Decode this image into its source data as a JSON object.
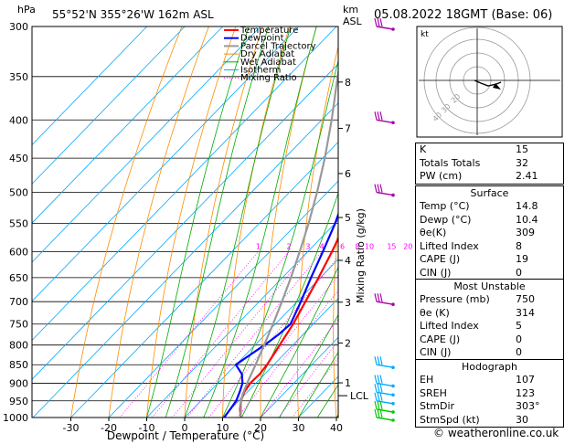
{
  "header": {
    "unit_left": "hPa",
    "location": "55°52'N  355°26'W  162m  ASL",
    "unit_right_1": "km",
    "unit_right_2": "ASL",
    "datetime": "05.08.2022  18GMT  (Base: 06)"
  },
  "chart_data": {
    "type": "line",
    "title": "55°52'N  355°26'W  162m  ASL",
    "xlabel": "Dewpoint / Temperature (°C)",
    "ylabel_left": "hPa",
    "ylabel_right": "Mixing Ratio (g/kg)",
    "x_ticks": [
      "-30",
      "-20",
      "-10",
      "0",
      "10",
      "20",
      "30",
      "40"
    ],
    "pressure_ticks": [
      "300",
      "350",
      "400",
      "450",
      "500",
      "550",
      "600",
      "650",
      "700",
      "750",
      "800",
      "850",
      "900",
      "950",
      "1000"
    ],
    "km_ticks": [
      "1",
      "2",
      "3",
      "4",
      "5",
      "6",
      "7",
      "8"
    ],
    "lcl_label": "LCL",
    "mixing_ratio_labels": [
      "1",
      "2",
      "3",
      "4",
      "6",
      "8",
      "10",
      "15",
      "20",
      "25"
    ],
    "legend": [
      "Temperature",
      "Dewpoint",
      "Parcel Trajectory",
      "Dry Adiabat",
      "Wet Adiabat",
      "Isotherm",
      "Mixing Ratio"
    ],
    "colors": {
      "temperature": "#ff0000",
      "dewpoint": "#0000ff",
      "parcel": "#999999",
      "dry_adiabat": "#ff8c00",
      "wet_adiabat": "#00aa00",
      "isotherm": "#00aaff",
      "mixing_ratio": "#ff00ff"
    },
    "series": [
      {
        "name": "Temperature",
        "points": [
          [
            1000,
            14.8
          ],
          [
            975,
            12.5
          ],
          [
            950,
            10.6
          ],
          [
            925,
            9.2
          ],
          [
            900,
            8.5
          ],
          [
            875,
            8.7
          ],
          [
            850,
            8.2
          ],
          [
            800,
            6.5
          ],
          [
            750,
            4.7
          ],
          [
            700,
            2.2
          ],
          [
            650,
            -0.5
          ],
          [
            600,
            -3.6
          ],
          [
            550,
            -7.3
          ],
          [
            500,
            -11.6
          ],
          [
            450,
            -16.8
          ],
          [
            400,
            -23.5
          ],
          [
            350,
            -32.0
          ],
          [
            300,
            -41.5
          ]
        ]
      },
      {
        "name": "Dewpoint",
        "points": [
          [
            1000,
            10.4
          ],
          [
            975,
            9.9
          ],
          [
            950,
            9.3
          ],
          [
            925,
            8.0
          ],
          [
            900,
            6.5
          ],
          [
            875,
            4.0
          ],
          [
            850,
            0.0
          ],
          [
            825,
            1.2
          ],
          [
            800,
            2.5
          ],
          [
            775,
            3.5
          ],
          [
            750,
            4.0
          ],
          [
            700,
            1.0
          ],
          [
            650,
            -2.5
          ],
          [
            600,
            -6.0
          ],
          [
            550,
            -10.0
          ],
          [
            500,
            -15.0
          ],
          [
            450,
            -20.5
          ],
          [
            420,
            -25.0
          ],
          [
            400,
            -33.0
          ],
          [
            350,
            -36.5
          ],
          [
            300,
            -44.0
          ]
        ]
      },
      {
        "name": "Parcel Trajectory",
        "points": [
          [
            1000,
            14.8
          ],
          [
            950,
            10.6
          ],
          [
            930,
            9.3
          ],
          [
            900,
            7.7
          ],
          [
            850,
            5.2
          ],
          [
            800,
            2.4
          ],
          [
            750,
            -0.6
          ],
          [
            700,
            -4.0
          ],
          [
            650,
            -7.8
          ],
          [
            600,
            -12.1
          ],
          [
            550,
            -17.0
          ],
          [
            500,
            -22.7
          ],
          [
            450,
            -29.4
          ],
          [
            400,
            -37.4
          ],
          [
            350,
            -46.9
          ],
          [
            300,
            -57.5
          ]
        ]
      }
    ],
    "hodograph": {
      "label": "kt",
      "ring_labels": [
        "20",
        "30",
        "40"
      ]
    },
    "wind_barbs_pressure": [
      300,
      400,
      500,
      700,
      850,
      900,
      925,
      950,
      975,
      1000
    ]
  },
  "stats": {
    "k_label": "K",
    "k": "15",
    "tt_label": "Totals Totals",
    "tt": "32",
    "pw_label": "PW (cm)",
    "pw": "2.41"
  },
  "surface": {
    "title": "Surface",
    "rows": [
      {
        "label": "Temp (°C)",
        "value": "14.8"
      },
      {
        "label": "Dewp (°C)",
        "value": "10.4"
      },
      {
        "label": "θe(K)",
        "value": "309"
      },
      {
        "label": "Lifted Index",
        "value": "8"
      },
      {
        "label": "CAPE (J)",
        "value": "19"
      },
      {
        "label": "CIN (J)",
        "value": "0"
      }
    ]
  },
  "most_unstable": {
    "title": "Most Unstable",
    "rows": [
      {
        "label": "Pressure (mb)",
        "value": "750"
      },
      {
        "label": "θe (K)",
        "value": "314"
      },
      {
        "label": "Lifted Index",
        "value": "5"
      },
      {
        "label": "CAPE (J)",
        "value": "0"
      },
      {
        "label": "CIN (J)",
        "value": "0"
      }
    ]
  },
  "hodograph_table": {
    "title": "Hodograph",
    "rows": [
      {
        "label": "EH",
        "value": "107"
      },
      {
        "label": "SREH",
        "value": "123"
      },
      {
        "label": "StmDir",
        "value": "303°"
      },
      {
        "label": "StmSpd (kt)",
        "value": "30"
      }
    ]
  },
  "footer": {
    "credit": "© weatheronline.co.uk"
  }
}
